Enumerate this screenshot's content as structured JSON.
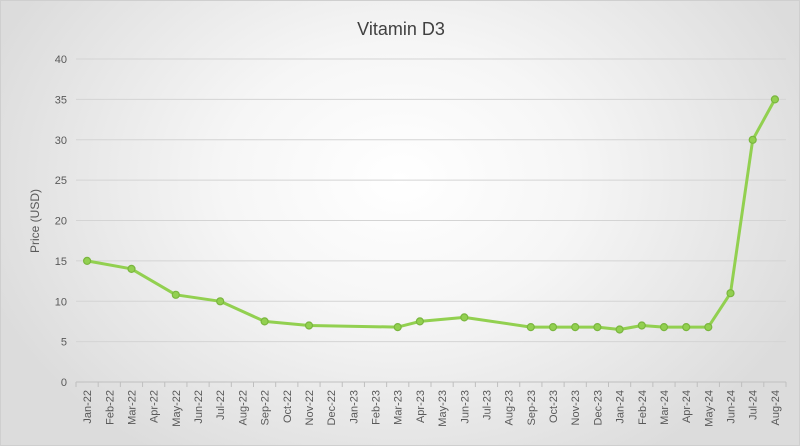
{
  "chart_data": {
    "type": "line",
    "title": "Vitamin D3",
    "xlabel": "",
    "ylabel": "Price (USD)",
    "ylim": [
      0,
      40
    ],
    "yticks": [
      0,
      5,
      10,
      15,
      20,
      25,
      30,
      35,
      40
    ],
    "grid": true,
    "categories": [
      "Jan-22",
      "Feb-22",
      "Mar-22",
      "Apr-22",
      "May-22",
      "Jun-22",
      "Jul-22",
      "Aug-22",
      "Sep-22",
      "Oct-22",
      "Nov-22",
      "Dec-22",
      "Jan-23",
      "Feb-23",
      "Mar-23",
      "Apr-23",
      "May-23",
      "Jun-23",
      "Jul-23",
      "Aug-23",
      "Sep-23",
      "Oct-23",
      "Nov-23",
      "Dec-23",
      "Jan-24",
      "Feb-24",
      "Mar-24",
      "Apr-24",
      "May-24",
      "Jun-24",
      "Jul-24",
      "Aug-24"
    ],
    "series": [
      {
        "name": "Vitamin D3",
        "color": "#92d050",
        "points": [
          {
            "x": "Jan-22",
            "y": 15
          },
          {
            "x": "Mar-22",
            "y": 14
          },
          {
            "x": "May-22",
            "y": 10.8
          },
          {
            "x": "Jul-22",
            "y": 10
          },
          {
            "x": "Sep-22",
            "y": 7.5
          },
          {
            "x": "Nov-22",
            "y": 7
          },
          {
            "x": "Mar-23",
            "y": 6.8
          },
          {
            "x": "Apr-23",
            "y": 7.5
          },
          {
            "x": "Jun-23",
            "y": 8
          },
          {
            "x": "Sep-23",
            "y": 6.8
          },
          {
            "x": "Oct-23",
            "y": 6.8
          },
          {
            "x": "Nov-23",
            "y": 6.8
          },
          {
            "x": "Dec-23",
            "y": 6.8
          },
          {
            "x": "Jan-24",
            "y": 6.5
          },
          {
            "x": "Feb-24",
            "y": 7
          },
          {
            "x": "Mar-24",
            "y": 6.8
          },
          {
            "x": "Apr-24",
            "y": 6.8
          },
          {
            "x": "May-24",
            "y": 6.8
          },
          {
            "x": "Jun-24",
            "y": 11
          },
          {
            "x": "Jul-24",
            "y": 30
          },
          {
            "x": "Aug-24",
            "y": 35
          }
        ]
      }
    ]
  }
}
